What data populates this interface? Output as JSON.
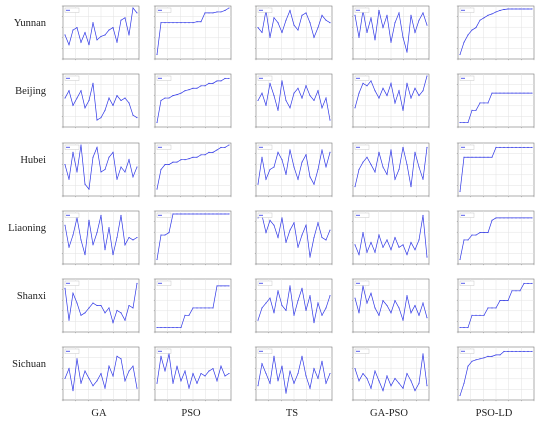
{
  "colors": {
    "line": "#2f37e6",
    "grid": "#e2e2e2",
    "frame": "#777777"
  },
  "chart_data": {
    "type": "line",
    "row_labels": [
      "Yunnan",
      "Beijing",
      "Hubei",
      "Liaoning",
      "Shanxi",
      "Sichuan"
    ],
    "col_labels": [
      "GA",
      "PSO",
      "TS",
      "GA-PSO",
      "PSO-LD"
    ],
    "grid": true,
    "legend_placement": "top-left",
    "panels": [
      [
        {
          "values": [
            0.45,
            0.25,
            0.55,
            0.6,
            0.3,
            0.5,
            0.25,
            0.7,
            0.35,
            0.42,
            0.45,
            0.55,
            0.6,
            0.3,
            0.75,
            0.8,
            0.45,
            1.0,
            0.9
          ]
        },
        {
          "values": [
            0.05,
            0.7,
            0.7,
            0.7,
            0.7,
            0.7,
            0.7,
            0.7,
            0.7,
            0.7,
            0.72,
            0.72,
            0.9,
            0.9,
            0.9,
            0.92,
            0.92,
            0.95,
            1.0
          ]
        },
        {
          "values": [
            0.6,
            0.5,
            0.95,
            0.4,
            0.8,
            0.7,
            0.5,
            0.75,
            0.95,
            0.65,
            0.55,
            0.85,
            0.9,
            0.7,
            0.4,
            0.6,
            0.85,
            0.75,
            0.7
          ]
        },
        {
          "values": [
            0.85,
            0.4,
            0.95,
            0.5,
            0.8,
            0.35,
            0.95,
            0.6,
            0.85,
            0.3,
            0.7,
            0.9,
            0.4,
            0.1,
            0.85,
            0.5,
            0.75,
            0.9,
            0.65
          ]
        },
        {
          "values": [
            0.05,
            0.3,
            0.45,
            0.55,
            0.6,
            0.75,
            0.8,
            0.85,
            0.88,
            0.92,
            0.95,
            0.97,
            0.98,
            0.98,
            0.98,
            0.98,
            0.98,
            0.98,
            0.98
          ]
        }
      ],
      [
        {
          "values": [
            0.55,
            0.7,
            0.4,
            0.55,
            0.7,
            0.35,
            0.5,
            0.85,
            0.1,
            0.15,
            0.3,
            0.55,
            0.4,
            0.6,
            0.5,
            0.55,
            0.45,
            0.2,
            0.15
          ]
        },
        {
          "values": [
            0.05,
            0.5,
            0.55,
            0.55,
            0.6,
            0.62,
            0.65,
            0.7,
            0.72,
            0.75,
            0.75,
            0.8,
            0.8,
            0.85,
            0.85,
            0.9,
            0.9,
            0.95,
            0.95
          ]
        },
        {
          "values": [
            0.5,
            0.65,
            0.4,
            0.85,
            0.6,
            0.3,
            0.9,
            0.5,
            0.35,
            0.65,
            0.75,
            0.55,
            0.8,
            0.6,
            0.5,
            0.7,
            0.35,
            0.55,
            0.1
          ]
        },
        {
          "values": [
            0.35,
            0.65,
            0.85,
            0.8,
            0.9,
            0.7,
            0.55,
            0.75,
            0.6,
            0.85,
            0.45,
            0.7,
            0.3,
            0.85,
            0.55,
            0.75,
            0.6,
            0.7,
            1.0
          ]
        },
        {
          "values": [
            0.05,
            0.05,
            0.05,
            0.3,
            0.3,
            0.45,
            0.45,
            0.45,
            0.65,
            0.65,
            0.65,
            0.65,
            0.65,
            0.65,
            0.65,
            0.65,
            0.65,
            0.65,
            0.65
          ]
        }
      ],
      [
        {
          "values": [
            0.6,
            0.3,
            0.85,
            0.45,
            1.0,
            0.2,
            0.1,
            0.75,
            0.95,
            0.45,
            0.5,
            0.75,
            0.85,
            0.3,
            0.55,
            0.45,
            0.7,
            0.35,
            0.55
          ]
        },
        {
          "values": [
            0.1,
            0.5,
            0.6,
            0.6,
            0.65,
            0.65,
            0.7,
            0.7,
            0.72,
            0.75,
            0.75,
            0.8,
            0.8,
            0.85,
            0.85,
            0.9,
            0.95,
            0.95,
            1.0
          ]
        },
        {
          "values": [
            0.2,
            0.75,
            0.3,
            0.5,
            0.55,
            0.85,
            0.7,
            0.4,
            0.9,
            0.55,
            0.3,
            0.65,
            0.8,
            0.35,
            0.2,
            0.5,
            0.9,
            0.55,
            0.85
          ]
        },
        {
          "values": [
            0.15,
            0.5,
            0.65,
            0.75,
            0.6,
            0.45,
            0.85,
            0.55,
            0.4,
            0.9,
            0.3,
            0.5,
            0.95,
            0.6,
            0.15,
            0.85,
            0.55,
            0.3,
            0.95
          ]
        },
        {
          "values": [
            0.05,
            0.75,
            0.75,
            0.75,
            0.75,
            0.75,
            0.75,
            0.75,
            0.75,
            0.95,
            0.95,
            0.95,
            0.95,
            0.95,
            0.95,
            0.95,
            0.95,
            0.95,
            0.95
          ]
        }
      ],
      [
        {
          "values": [
            0.75,
            0.3,
            0.55,
            0.9,
            0.45,
            0.15,
            0.85,
            0.35,
            0.6,
            0.95,
            0.25,
            0.7,
            0.15,
            0.5,
            0.95,
            0.35,
            0.5,
            0.45,
            0.5
          ]
        },
        {
          "values": [
            0.05,
            0.55,
            0.55,
            0.6,
            0.98,
            0.98,
            0.98,
            0.98,
            0.98,
            0.98,
            0.98,
            0.98,
            0.98,
            0.98,
            0.98,
            0.98,
            0.98,
            0.98,
            0.98
          ]
        },
        {
          "values": [
            0.9,
            0.95,
            0.6,
            0.85,
            0.75,
            0.5,
            0.9,
            0.4,
            0.65,
            0.8,
            0.3,
            0.55,
            0.75,
            0.1,
            0.5,
            0.8,
            0.5,
            0.45,
            0.65
          ]
        },
        {
          "values": [
            0.35,
            0.15,
            0.6,
            0.2,
            0.4,
            0.2,
            0.55,
            0.3,
            0.45,
            0.25,
            0.5,
            0.3,
            0.35,
            0.15,
            0.4,
            0.25,
            0.45,
            0.95,
            0.1
          ]
        },
        {
          "values": [
            0.05,
            0.45,
            0.45,
            0.55,
            0.55,
            0.6,
            0.6,
            0.6,
            0.85,
            0.9,
            0.9,
            0.9,
            0.9,
            0.9,
            0.9,
            0.9,
            0.9,
            0.9,
            0.9
          ]
        }
      ],
      [
        {
          "values": [
            0.85,
            0.2,
            0.75,
            0.55,
            0.3,
            0.35,
            0.45,
            0.55,
            0.5,
            0.5,
            0.35,
            0.45,
            0.15,
            0.4,
            0.35,
            0.2,
            0.5,
            0.45,
            0.95
          ]
        },
        {
          "values": [
            0.05,
            0.05,
            0.05,
            0.05,
            0.05,
            0.05,
            0.05,
            0.3,
            0.3,
            0.45,
            0.45,
            0.45,
            0.45,
            0.45,
            0.45,
            0.9,
            0.9,
            0.9,
            0.9
          ]
        },
        {
          "values": [
            0.2,
            0.45,
            0.55,
            0.65,
            0.35,
            0.8,
            0.5,
            0.4,
            0.9,
            0.3,
            0.6,
            0.85,
            0.4,
            0.7,
            0.15,
            0.55,
            0.3,
            0.45,
            0.7
          ]
        },
        {
          "values": [
            0.65,
            0.35,
            0.9,
            0.55,
            0.75,
            0.45,
            0.3,
            0.6,
            0.5,
            0.35,
            0.6,
            0.45,
            0.2,
            0.7,
            0.35,
            0.5,
            0.3,
            0.55,
            0.25
          ]
        },
        {
          "values": [
            0.05,
            0.05,
            0.05,
            0.3,
            0.3,
            0.3,
            0.3,
            0.45,
            0.45,
            0.45,
            0.6,
            0.6,
            0.6,
            0.8,
            0.8,
            0.8,
            0.95,
            0.95,
            0.95
          ]
        }
      ],
      [
        {
          "values": [
            0.4,
            0.6,
            0.15,
            0.8,
            0.3,
            0.55,
            0.4,
            0.25,
            0.35,
            0.5,
            0.2,
            0.65,
            0.45,
            0.85,
            0.8,
            0.35,
            0.55,
            0.65,
            0.2
          ]
        },
        {
          "values": [
            0.3,
            0.85,
            0.55,
            0.9,
            0.3,
            0.65,
            0.35,
            0.55,
            0.2,
            0.5,
            0.3,
            0.5,
            0.45,
            0.55,
            0.6,
            0.35,
            0.65,
            0.45,
            0.5
          ]
        },
        {
          "values": [
            0.25,
            0.7,
            0.5,
            0.3,
            0.85,
            0.35,
            0.65,
            0.1,
            0.55,
            0.3,
            0.5,
            0.85,
            0.45,
            0.2,
            0.6,
            0.4,
            0.75,
            0.3,
            0.5
          ]
        },
        {
          "values": [
            0.6,
            0.35,
            0.5,
            0.4,
            0.2,
            0.55,
            0.35,
            0.15,
            0.45,
            0.25,
            0.4,
            0.3,
            0.2,
            0.5,
            0.35,
            0.15,
            0.3,
            0.9,
            0.25
          ]
        },
        {
          "values": [
            0.05,
            0.3,
            0.65,
            0.75,
            0.78,
            0.8,
            0.82,
            0.85,
            0.85,
            0.88,
            0.88,
            0.95,
            0.95,
            0.95,
            0.95,
            0.95,
            0.95,
            0.95,
            0.95
          ]
        }
      ]
    ]
  }
}
